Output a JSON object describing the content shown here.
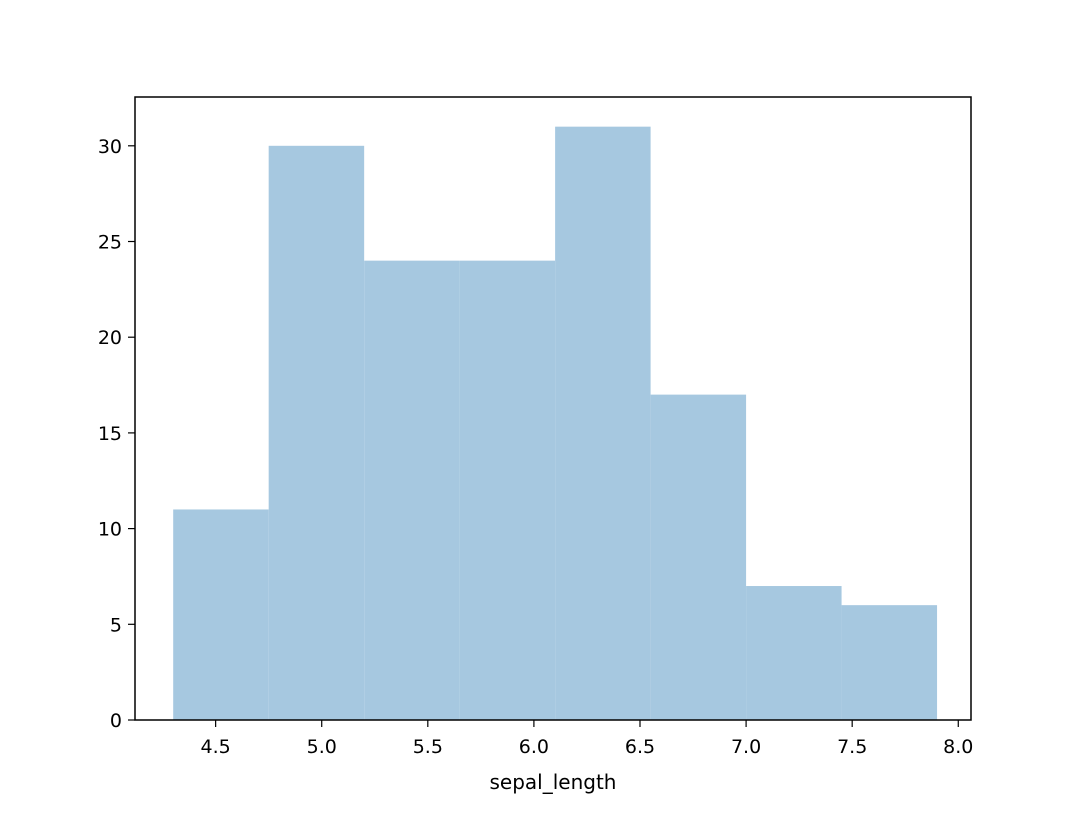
{
  "chart_data": {
    "type": "bar",
    "title": "",
    "xlabel": "sepal_length",
    "ylabel": "",
    "bin_edges": [
      4.3,
      4.75,
      5.2,
      5.65,
      6.1,
      6.55,
      7.0,
      7.45,
      7.9
    ],
    "values": [
      11,
      30,
      24,
      24,
      31,
      17,
      7,
      6
    ],
    "xlim": [
      4.12,
      8.06
    ],
    "ylim": [
      0,
      32.55
    ],
    "xticks": [
      "4.5",
      "5.0",
      "5.5",
      "6.0",
      "6.5",
      "7.0",
      "7.5",
      "8.0"
    ],
    "yticks": [
      "0",
      "5",
      "10",
      "15",
      "20",
      "25",
      "30"
    ],
    "grid": false,
    "bar_color": "#a6c8e0"
  }
}
